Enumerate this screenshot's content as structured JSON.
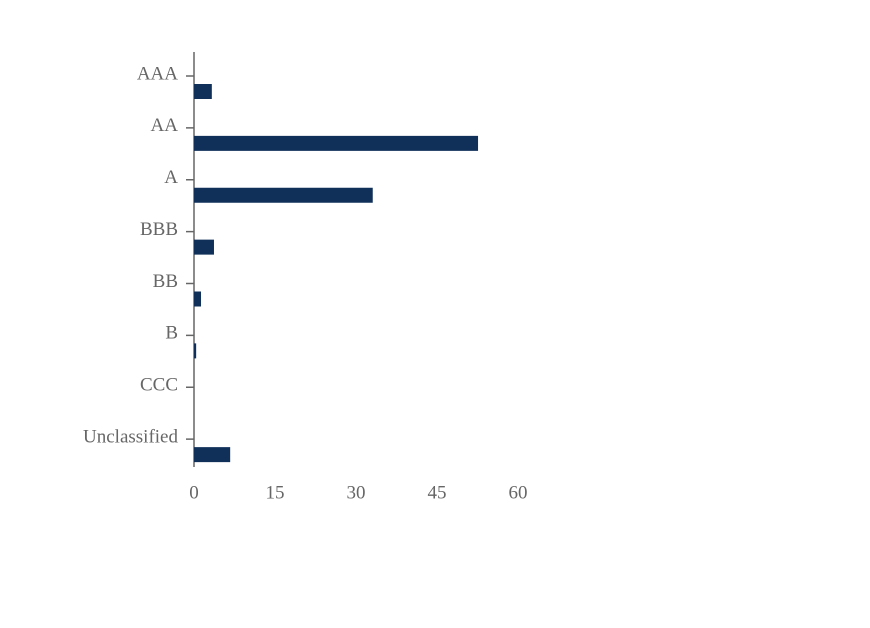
{
  "chart_data": {
    "type": "barh",
    "categories": [
      "AAA",
      "AA",
      "A",
      "BBB",
      "BB",
      "B",
      "CCC",
      "Unclassified"
    ],
    "values": [
      3.3,
      52.6,
      33.1,
      3.7,
      1.3,
      0.4,
      0,
      6.7
    ],
    "color": "#10305a",
    "xlim": [
      0,
      60
    ],
    "xticks": [
      0,
      15,
      30,
      45,
      60
    ]
  }
}
